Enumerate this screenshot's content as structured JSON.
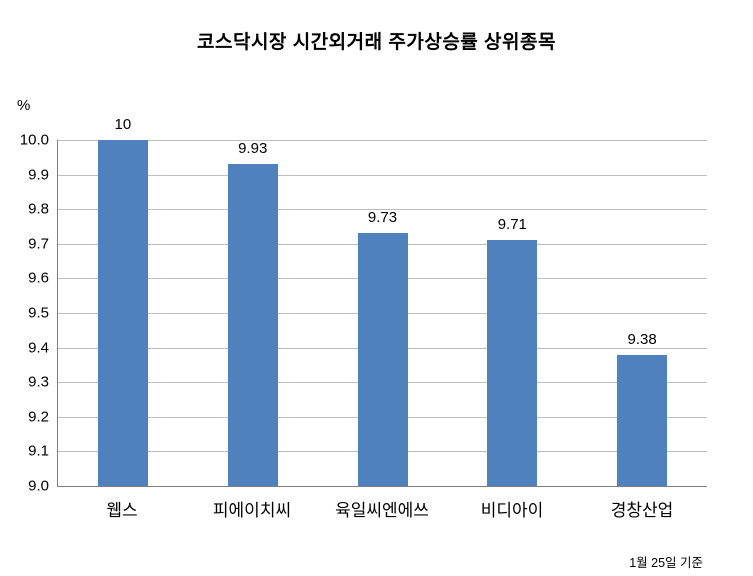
{
  "chart_data": {
    "type": "bar",
    "title": "코스닥시장 시간외거래  주가상승률 상위종목",
    "ylabel": "%",
    "xlabel": "",
    "footnote": "1월 25일 기준",
    "categories": [
      "웹스",
      "피에이치씨",
      "육일씨엔에쓰",
      "비디아이",
      "경창산업"
    ],
    "values": [
      10,
      9.93,
      9.73,
      9.71,
      9.38
    ],
    "value_labels": [
      "10",
      "9.93",
      "9.73",
      "9.71",
      "9.38"
    ],
    "ylim": [
      9.0,
      10.0
    ],
    "yticks": [
      "10.0",
      "9.9",
      "9.8",
      "9.7",
      "9.6",
      "9.5",
      "9.4",
      "9.3",
      "9.2",
      "9.1",
      "9.0"
    ],
    "grid": true,
    "legend": "none",
    "bar_color": "#4F81BD",
    "gridline_color": "#BFBFBF",
    "axis_color": "#7F7F7F"
  }
}
